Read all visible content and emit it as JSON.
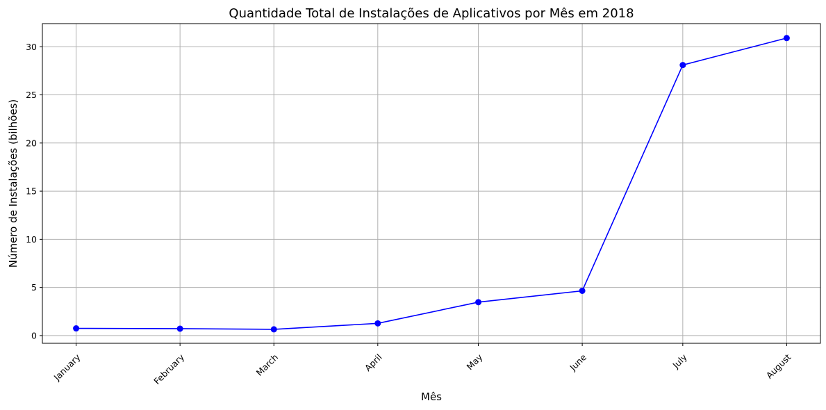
{
  "chart_data": {
    "type": "line",
    "title": "Quantidade Total de Instalações de Aplicativos por Mês em 2018",
    "xlabel": "Mês",
    "ylabel": "Número de Instalações (bilhões)",
    "categories": [
      "January",
      "February",
      "March",
      "April",
      "May",
      "June",
      "July",
      "August"
    ],
    "x_positions_months": [
      1,
      2,
      3,
      4,
      5,
      6,
      7,
      8
    ],
    "x_tick_days": [
      1,
      32,
      60,
      91,
      121,
      152,
      182,
      213
    ],
    "series": [
      {
        "values": [
          0.75,
          0.72,
          0.65,
          1.27,
          3.47,
          4.65,
          28.1,
          30.9
        ],
        "color": "#0000ff",
        "marker": "circle"
      }
    ],
    "yticks": [
      0,
      5,
      10,
      15,
      20,
      25,
      30
    ],
    "ylim": [
      -0.8,
      32.4
    ],
    "grid": true,
    "legend": "none"
  }
}
